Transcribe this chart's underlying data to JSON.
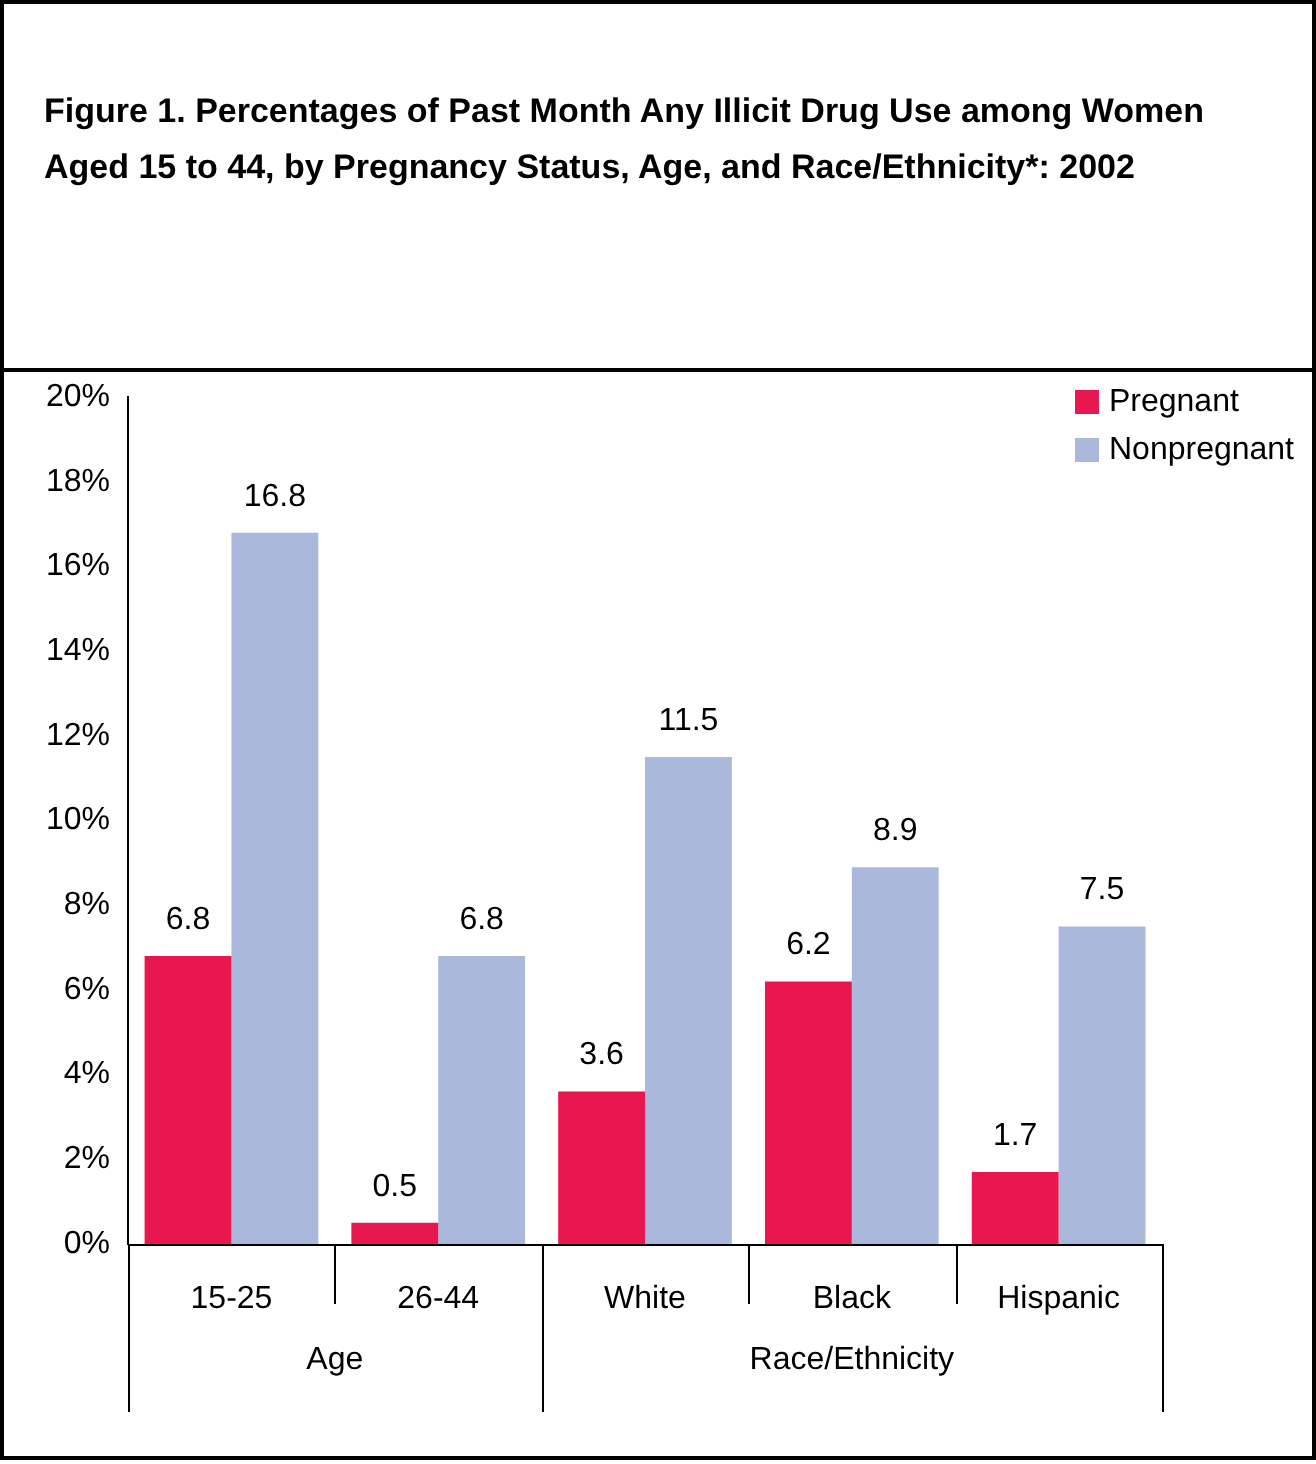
{
  "chart_data": {
    "type": "bar",
    "title": "Figure 1.  Percentages of Past Month Any Illicit Drug Use among Women Aged 15 to 44, by Pregnancy Status, Age, and Race/Ethnicity*:  2002",
    "categories": [
      "15-25",
      "26-44",
      "White",
      "Black",
      "Hispanic"
    ],
    "series": [
      {
        "name": "Pregnant",
        "color": "#e8174f",
        "values": [
          6.8,
          0.5,
          3.6,
          6.2,
          1.7
        ]
      },
      {
        "name": "Nonpregnant",
        "color": "#aab8dc",
        "values": [
          16.8,
          6.8,
          11.5,
          8.9,
          7.5
        ]
      }
    ],
    "ylim": [
      0,
      20
    ],
    "yticks": [
      {
        "value": 0,
        "label": "0%"
      },
      {
        "value": 2,
        "label": "2%"
      },
      {
        "value": 4,
        "label": "4%"
      },
      {
        "value": 6,
        "label": "6%"
      },
      {
        "value": 8,
        "label": "8%"
      },
      {
        "value": 10,
        "label": "10%"
      },
      {
        "value": 12,
        "label": "12%"
      },
      {
        "value": 14,
        "label": "14%"
      },
      {
        "value": 16,
        "label": "16%"
      },
      {
        "value": 18,
        "label": "18%"
      },
      {
        "value": 20,
        "label": "20%"
      }
    ],
    "annotations": [
      "Age",
      "Race/Ethnicity"
    ],
    "data_labels": true,
    "grid": false,
    "legend": "top right"
  }
}
